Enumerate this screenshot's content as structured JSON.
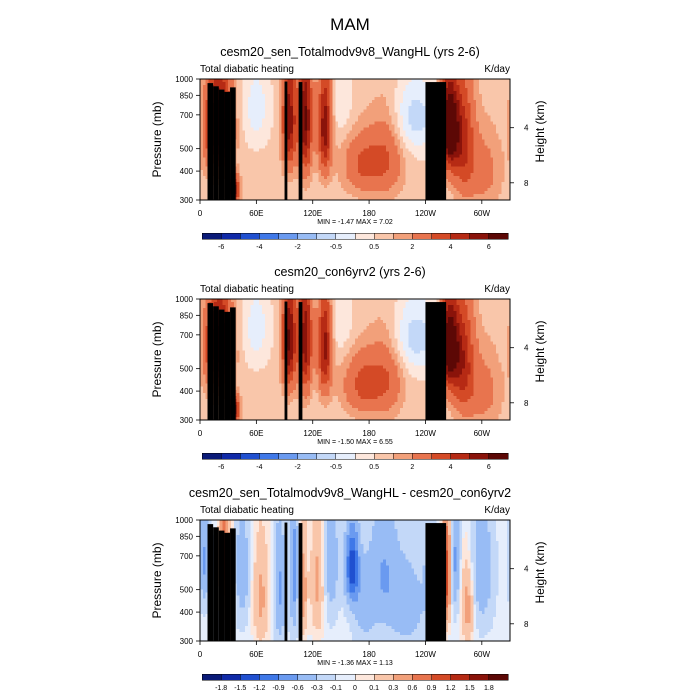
{
  "title": "MAM",
  "chart_data": [
    {
      "type": "heatmap",
      "title": "cesm20_sen_Totalmodv9v8_WangHL (yrs 2-6)",
      "left_string": "Total diabatic heating",
      "right_string": "K/day",
      "ylabel": "Pressure (mb)",
      "ylabel_right": "Height (km)",
      "x_ticks": [
        "0",
        "60E",
        "120E",
        "180",
        "120W",
        "60W"
      ],
      "y_ticks": [
        "300",
        "400",
        "500",
        "700",
        "850",
        "1000"
      ],
      "y_right_ticks": [
        "8",
        "4"
      ],
      "stats": "MIN = -1.47 MAX = 7.02",
      "colorbar_labels": [
        "-6",
        "-4",
        "-2",
        "-0.5",
        "0.5",
        "2",
        "4",
        "6"
      ],
      "field": {
        "base": 0.2,
        "features": [
          {
            "lon": 20,
            "p": 480,
            "amp": 6.0,
            "wlon": 9,
            "wp": 160
          },
          {
            "lon": 35,
            "p": 900,
            "amp": 7.0,
            "wlon": 4,
            "wp": 80
          },
          {
            "lon": 95,
            "p": 450,
            "amp": 4.5,
            "wlon": 5,
            "wp": 170
          },
          {
            "lon": 112,
            "p": 450,
            "amp": 5.0,
            "wlon": 5,
            "wp": 190
          },
          {
            "lon": 133,
            "p": 480,
            "amp": 4.5,
            "wlon": 5,
            "wp": 170
          },
          {
            "lon": 175,
            "p": 700,
            "amp": 2.0,
            "wlon": 15,
            "wp": 150
          },
          {
            "lon": 200,
            "p": 620,
            "amp": 1.6,
            "wlon": 12,
            "wp": 200
          },
          {
            "lon": 228,
            "p": 440,
            "amp": -1.47,
            "wlon": 22,
            "wp": 120
          },
          {
            "lon": 251,
            "p": 750,
            "amp": -1.2,
            "wlon": 3,
            "wp": 250
          },
          {
            "lon": 265,
            "p": 480,
            "amp": 7.02,
            "wlon": 7,
            "wp": 150
          },
          {
            "lon": 280,
            "p": 550,
            "amp": 3.0,
            "wlon": 8,
            "wp": 220
          },
          {
            "lon": 300,
            "p": 750,
            "amp": 1.2,
            "wlon": 14,
            "wp": 200
          },
          {
            "lon": 60,
            "p": 400,
            "amp": -1.0,
            "wlon": 10,
            "wp": 120
          },
          {
            "lon": 150,
            "p": 380,
            "amp": -0.7,
            "wlon": 10,
            "wp": 100
          }
        ]
      }
    },
    {
      "type": "heatmap",
      "title": "cesm20_con6yrv2 (yrs 2-6)",
      "left_string": "Total diabatic heating",
      "right_string": "K/day",
      "ylabel": "Pressure (mb)",
      "ylabel_right": "Height (km)",
      "x_ticks": [
        "0",
        "60E",
        "120E",
        "180",
        "120W",
        "60W"
      ],
      "y_ticks": [
        "300",
        "400",
        "500",
        "700",
        "850",
        "1000"
      ],
      "y_right_ticks": [
        "8",
        "4"
      ],
      "stats": "MIN = -1.50 MAX = 6.55",
      "colorbar_labels": [
        "-6",
        "-4",
        "-2",
        "-0.5",
        "0.5",
        "2",
        "4",
        "6"
      ],
      "field": {
        "base": 0.2,
        "features": [
          {
            "lon": 20,
            "p": 480,
            "amp": 5.5,
            "wlon": 9,
            "wp": 160
          },
          {
            "lon": 35,
            "p": 900,
            "amp": 6.5,
            "wlon": 4,
            "wp": 80
          },
          {
            "lon": 95,
            "p": 450,
            "amp": 5.0,
            "wlon": 5,
            "wp": 170
          },
          {
            "lon": 112,
            "p": 450,
            "amp": 4.5,
            "wlon": 5,
            "wp": 190
          },
          {
            "lon": 133,
            "p": 480,
            "amp": 4.2,
            "wlon": 5,
            "wp": 170
          },
          {
            "lon": 175,
            "p": 700,
            "amp": 2.2,
            "wlon": 15,
            "wp": 150
          },
          {
            "lon": 200,
            "p": 620,
            "amp": 1.5,
            "wlon": 12,
            "wp": 200
          },
          {
            "lon": 228,
            "p": 440,
            "amp": -1.5,
            "wlon": 22,
            "wp": 120
          },
          {
            "lon": 251,
            "p": 750,
            "amp": -1.2,
            "wlon": 3,
            "wp": 250
          },
          {
            "lon": 265,
            "p": 480,
            "amp": 6.55,
            "wlon": 7,
            "wp": 150
          },
          {
            "lon": 280,
            "p": 550,
            "amp": 3.2,
            "wlon": 8,
            "wp": 220
          },
          {
            "lon": 300,
            "p": 750,
            "amp": 1.2,
            "wlon": 14,
            "wp": 200
          },
          {
            "lon": 60,
            "p": 400,
            "amp": -1.0,
            "wlon": 10,
            "wp": 120
          },
          {
            "lon": 150,
            "p": 380,
            "amp": -0.7,
            "wlon": 10,
            "wp": 100
          }
        ]
      }
    },
    {
      "type": "heatmap",
      "title": "cesm20_sen_Totalmodv9v8_WangHL - cesm20_con6yrv2",
      "left_string": "Total diabatic heating",
      "right_string": "K/day",
      "ylabel": "Pressure (mb)",
      "ylabel_right": "Height (km)",
      "x_ticks": [
        "0",
        "60E",
        "120E",
        "180",
        "120W",
        "60W"
      ],
      "y_ticks": [
        "300",
        "400",
        "500",
        "700",
        "850",
        "1000"
      ],
      "y_right_ticks": [
        "8",
        "4"
      ],
      "stats": "MIN = -1.36 MAX = 1.13",
      "colorbar_labels": [
        "-1.8",
        "-1.5",
        "-1.2",
        "-0.9",
        "-0.6",
        "-0.3",
        "-0.1",
        "0",
        "0.1",
        "0.3",
        "0.6",
        "0.9",
        "1.2",
        "1.5",
        "1.8"
      ],
      "field": {
        "base": -0.05,
        "features": [
          {
            "lon": 25,
            "p": 450,
            "amp": 1.1,
            "wlon": 3,
            "wp": 170
          },
          {
            "lon": 32,
            "p": 650,
            "amp": 0.6,
            "wlon": 3,
            "wp": 250
          },
          {
            "lon": 5,
            "p": 450,
            "amp": -0.6,
            "wlon": 4,
            "wp": 150
          },
          {
            "lon": 45,
            "p": 500,
            "amp": -0.5,
            "wlon": 5,
            "wp": 200
          },
          {
            "lon": 65,
            "p": 650,
            "amp": 0.4,
            "wlon": 6,
            "wp": 250
          },
          {
            "lon": 85,
            "p": 600,
            "amp": -0.6,
            "wlon": 4,
            "wp": 250
          },
          {
            "lon": 100,
            "p": 500,
            "amp": -0.7,
            "wlon": 3,
            "wp": 250
          },
          {
            "lon": 110,
            "p": 600,
            "amp": 0.5,
            "wlon": 3,
            "wp": 220
          },
          {
            "lon": 125,
            "p": 550,
            "amp": 0.4,
            "wlon": 5,
            "wp": 250
          },
          {
            "lon": 140,
            "p": 450,
            "amp": -0.5,
            "wlon": 5,
            "wp": 200
          },
          {
            "lon": 162,
            "p": 480,
            "amp": -1.36,
            "wlon": 5,
            "wp": 130
          },
          {
            "lon": 175,
            "p": 700,
            "amp": -0.4,
            "wlon": 8,
            "wp": 200
          },
          {
            "lon": 195,
            "p": 500,
            "amp": -0.5,
            "wlon": 10,
            "wp": 220
          },
          {
            "lon": 220,
            "p": 700,
            "amp": -0.4,
            "wlon": 15,
            "wp": 250
          },
          {
            "lon": 245,
            "p": 500,
            "amp": -0.3,
            "wlon": 5,
            "wp": 200
          },
          {
            "lon": 262,
            "p": 520,
            "amp": 1.13,
            "wlon": 3,
            "wp": 200
          },
          {
            "lon": 272,
            "p": 450,
            "amp": -0.6,
            "wlon": 3,
            "wp": 180
          },
          {
            "lon": 285,
            "p": 700,
            "amp": 0.5,
            "wlon": 5,
            "wp": 200
          },
          {
            "lon": 300,
            "p": 500,
            "amp": -0.5,
            "wlon": 8,
            "wp": 220
          }
        ]
      }
    }
  ]
}
